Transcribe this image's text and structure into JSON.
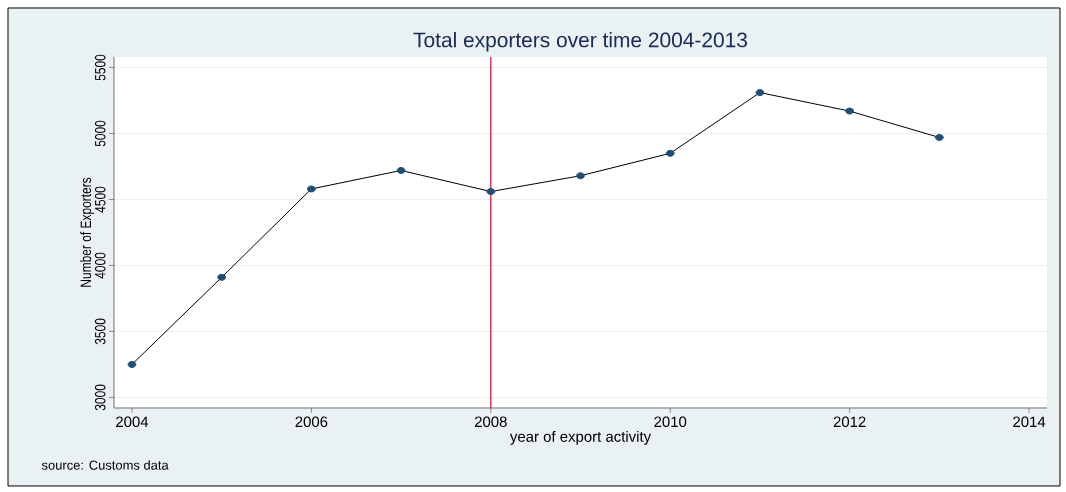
{
  "chart_data": {
    "type": "line",
    "title": "Total exporters over time 2004-2013",
    "xlabel": "year of export activity",
    "ylabel": "Number of Exporters",
    "x": [
      2004,
      2005,
      2006,
      2007,
      2008,
      2009,
      2010,
      2011,
      2012,
      2013
    ],
    "series": [
      {
        "color": "#1f4e79",
        "values": [
          3250,
          3910,
          4580,
          4720,
          4560,
          4680,
          4850,
          5310,
          5170,
          4970
        ]
      }
    ],
    "xlim": [
      2003.8,
      2014.2
    ],
    "ylim": [
      2920,
      5580
    ],
    "xticks": [
      2004,
      2006,
      2008,
      2010,
      2012,
      2014
    ],
    "yticks": [
      3000,
      3500,
      4000,
      4500,
      5000,
      5500
    ],
    "grid": "y",
    "marker": "circle",
    "line_style": "solid",
    "ref_lines": [
      {
        "axis": "x",
        "value": 2008,
        "color": "#c8102e"
      }
    ],
    "annotations": [
      "source: Customs data"
    ]
  }
}
